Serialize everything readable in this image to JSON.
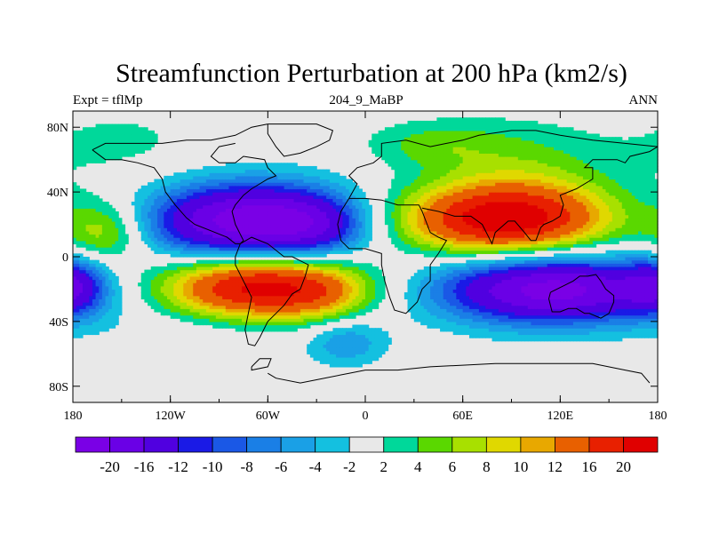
{
  "chart_data": {
    "type": "heatmap",
    "title": "Streamfunction Perturbation at 200 hPa (km2/s)",
    "subtitle_left": "Expt = tflMp",
    "subtitle_center": "204_9_MaBP",
    "subtitle_right": "ANN",
    "x_ticks": [
      {
        "value": -180,
        "label": "180"
      },
      {
        "value": -120,
        "label": "120W"
      },
      {
        "value": -60,
        "label": "60W"
      },
      {
        "value": 0,
        "label": "0"
      },
      {
        "value": 60,
        "label": "60E"
      },
      {
        "value": 120,
        "label": "120E"
      },
      {
        "value": 180,
        "label": "180"
      }
    ],
    "y_ticks": [
      {
        "value": 80,
        "label": "80N"
      },
      {
        "value": 40,
        "label": "40N"
      },
      {
        "value": 0,
        "label": "0"
      },
      {
        "value": -40,
        "label": "40S"
      },
      {
        "value": -80,
        "label": "80S"
      }
    ],
    "xlim": [
      -180,
      180
    ],
    "ylim": [
      -90,
      90
    ],
    "background_color": "#e8e8e8",
    "levels": [
      -20,
      -16,
      -12,
      -10,
      -8,
      -6,
      -4,
      -2,
      2,
      4,
      6,
      8,
      10,
      12,
      16,
      20
    ],
    "level_labels": [
      "-20",
      "-16",
      "-12",
      "-10",
      "-8",
      "-6",
      "-4",
      "-2",
      "2",
      "4",
      "6",
      "8",
      "10",
      "12",
      "16",
      "20"
    ],
    "colors": [
      "#7a00e6",
      "#6a00e6",
      "#5000e0",
      "#1a1ae6",
      "#1a58e6",
      "#1a7fe6",
      "#1aa0e6",
      "#14c0e0",
      "#e8e8e8",
      "#00d89a",
      "#5ad800",
      "#a8e000",
      "#e0d800",
      "#e8a800",
      "#e86000",
      "#e82000",
      "#e00000"
    ],
    "features": [
      {
        "lon": -75,
        "lat": 22,
        "sx": 42,
        "sy": 17,
        "amp": -22
      },
      {
        "lon": -30,
        "lat": 20,
        "sx": 25,
        "sy": 14,
        "amp": -8
      },
      {
        "lon": -160,
        "lat": 15,
        "sx": 18,
        "sy": 14,
        "amp": 8
      },
      {
        "lon": -150,
        "lat": 70,
        "sx": 40,
        "sy": 18,
        "amp": 2.5
      },
      {
        "lon": -65,
        "lat": -18,
        "sx": 42,
        "sy": 14,
        "amp": 22
      },
      {
        "lon": -25,
        "lat": -25,
        "sx": 20,
        "sy": 12,
        "amp": 4
      },
      {
        "lon": 85,
        "lat": 23,
        "sx": 45,
        "sy": 15,
        "amp": 22
      },
      {
        "lon": 95,
        "lat": 52,
        "sx": 40,
        "sy": 22,
        "amp": 5
      },
      {
        "lon": 40,
        "lat": 70,
        "sx": 30,
        "sy": 10,
        "amp": 4
      },
      {
        "lon": 115,
        "lat": -20,
        "sx": 50,
        "sy": 15,
        "amp": -22
      },
      {
        "lon": -180,
        "lat": -18,
        "sx": 14,
        "sy": 12,
        "amp": -10
      },
      {
        "lon": -12,
        "lat": -52,
        "sx": 18,
        "sy": 11,
        "amp": -6
      },
      {
        "lon": -110,
        "lat": -45,
        "sx": 45,
        "sy": 10,
        "amp": -1.5
      }
    ],
    "coastlines": [
      [
        [
          -168,
          66
        ],
        [
          -160,
          70
        ],
        [
          -140,
          70
        ],
        [
          -125,
          70
        ],
        [
          -110,
          72
        ],
        [
          -95,
          72
        ],
        [
          -80,
          75
        ],
        [
          -70,
          80
        ],
        [
          -60,
          82
        ]
      ],
      [
        [
          -168,
          66
        ],
        [
          -160,
          60
        ],
        [
          -150,
          60
        ],
        [
          -140,
          58
        ],
        [
          -130,
          55
        ],
        [
          -125,
          48
        ],
        [
          -123,
          40
        ],
        [
          -117,
          32
        ],
        [
          -110,
          24
        ],
        [
          -105,
          20
        ],
        [
          -95,
          16
        ],
        [
          -85,
          12
        ],
        [
          -80,
          8
        ],
        [
          -77,
          8
        ],
        [
          -75,
          10
        ],
        [
          -80,
          20
        ],
        [
          -82,
          28
        ],
        [
          -80,
          32
        ],
        [
          -75,
          38
        ],
        [
          -70,
          42
        ],
        [
          -65,
          45
        ],
        [
          -60,
          48
        ],
        [
          -55,
          50
        ],
        [
          -60,
          55
        ],
        [
          -62,
          60
        ],
        [
          -75,
          62
        ],
        [
          -80,
          58
        ],
        [
          -90,
          58
        ],
        [
          -95,
          62
        ],
        [
          -90,
          68
        ],
        [
          -80,
          70
        ]
      ],
      [
        [
          -60,
          82
        ],
        [
          -45,
          82
        ],
        [
          -30,
          82
        ],
        [
          -20,
          78
        ],
        [
          -22,
          72
        ],
        [
          -30,
          68
        ],
        [
          -40,
          64
        ],
        [
          -50,
          62
        ],
        [
          -55,
          68
        ],
        [
          -60,
          76
        ],
        [
          -60,
          82
        ]
      ],
      [
        [
          -77,
          8
        ],
        [
          -80,
          0
        ],
        [
          -80,
          -5
        ],
        [
          -75,
          -15
        ],
        [
          -70,
          -25
        ],
        [
          -72,
          -35
        ],
        [
          -74,
          -45
        ],
        [
          -72,
          -54
        ],
        [
          -68,
          -55
        ],
        [
          -65,
          -50
        ],
        [
          -60,
          -40
        ],
        [
          -55,
          -35
        ],
        [
          -50,
          -30
        ],
        [
          -45,
          -23
        ],
        [
          -40,
          -20
        ],
        [
          -37,
          -12
        ],
        [
          -35,
          -5
        ],
        [
          -45,
          0
        ],
        [
          -50,
          0
        ],
        [
          -60,
          8
        ],
        [
          -70,
          12
        ],
        [
          -77,
          8
        ]
      ],
      [
        [
          -10,
          36
        ],
        [
          -5,
          45
        ],
        [
          -10,
          50
        ],
        [
          -5,
          55
        ],
        [
          5,
          58
        ],
        [
          10,
          62
        ],
        [
          10,
          70
        ],
        [
          25,
          72
        ],
        [
          40,
          68
        ],
        [
          50,
          70
        ],
        [
          60,
          72
        ],
        [
          70,
          75
        ],
        [
          90,
          78
        ],
        [
          105,
          78
        ],
        [
          120,
          75
        ],
        [
          140,
          72
        ],
        [
          160,
          70
        ],
        [
          180,
          68
        ]
      ],
      [
        [
          -10,
          36
        ],
        [
          -15,
          28
        ],
        [
          -17,
          20
        ],
        [
          -15,
          10
        ],
        [
          -10,
          5
        ],
        [
          0,
          5
        ],
        [
          10,
          2
        ],
        [
          10,
          -5
        ],
        [
          12,
          -15
        ],
        [
          15,
          -25
        ],
        [
          18,
          -33
        ],
        [
          25,
          -35
        ],
        [
          32,
          -28
        ],
        [
          35,
          -20
        ],
        [
          40,
          -15
        ],
        [
          40,
          -5
        ],
        [
          45,
          2
        ],
        [
          50,
          10
        ],
        [
          45,
          12
        ],
        [
          40,
          15
        ],
        [
          35,
          28
        ],
        [
          33,
          32
        ],
        [
          20,
          32
        ],
        [
          10,
          35
        ],
        [
          0,
          36
        ],
        [
          -10,
          36
        ]
      ],
      [
        [
          35,
          30
        ],
        [
          45,
          28
        ],
        [
          55,
          25
        ],
        [
          60,
          25
        ],
        [
          65,
          25
        ],
        [
          72,
          20
        ],
        [
          78,
          8
        ],
        [
          80,
          15
        ],
        [
          88,
          22
        ],
        [
          92,
          22
        ],
        [
          98,
          15
        ],
        [
          102,
          10
        ],
        [
          105,
          10
        ],
        [
          108,
          18
        ],
        [
          110,
          20
        ],
        [
          115,
          22
        ],
        [
          120,
          25
        ],
        [
          122,
          32
        ],
        [
          120,
          38
        ],
        [
          125,
          40
        ],
        [
          130,
          42
        ],
        [
          140,
          48
        ],
        [
          140,
          55
        ],
        [
          135,
          55
        ],
        [
          140,
          60
        ],
        [
          155,
          60
        ],
        [
          160,
          58
        ],
        [
          163,
          62
        ],
        [
          175,
          65
        ],
        [
          180,
          68
        ]
      ],
      [
        [
          114,
          -22
        ],
        [
          113,
          -26
        ],
        [
          115,
          -34
        ],
        [
          120,
          -34
        ],
        [
          125,
          -32
        ],
        [
          130,
          -32
        ],
        [
          135,
          -35
        ],
        [
          138,
          -35
        ],
        [
          145,
          -38
        ],
        [
          150,
          -35
        ],
        [
          153,
          -28
        ],
        [
          153,
          -24
        ],
        [
          148,
          -20
        ],
        [
          145,
          -15
        ],
        [
          142,
          -11
        ],
        [
          137,
          -12
        ],
        [
          132,
          -12
        ],
        [
          128,
          -15
        ],
        [
          122,
          -18
        ],
        [
          114,
          -22
        ]
      ],
      [
        [
          -60,
          -72
        ],
        [
          -55,
          -75
        ],
        [
          -40,
          -78
        ],
        [
          -30,
          -76
        ],
        [
          -10,
          -72
        ],
        [
          0,
          -70
        ],
        [
          20,
          -70
        ],
        [
          40,
          -68
        ],
        [
          60,
          -67
        ],
        [
          80,
          -66
        ],
        [
          100,
          -66
        ],
        [
          120,
          -66
        ],
        [
          140,
          -66
        ],
        [
          160,
          -70
        ],
        [
          170,
          -72
        ],
        [
          175,
          -78
        ]
      ],
      [
        [
          -70,
          -68
        ],
        [
          -65,
          -63
        ],
        [
          -58,
          -63
        ],
        [
          -60,
          -68
        ],
        [
          -70,
          -70
        ],
        [
          -70,
          -68
        ]
      ]
    ]
  }
}
